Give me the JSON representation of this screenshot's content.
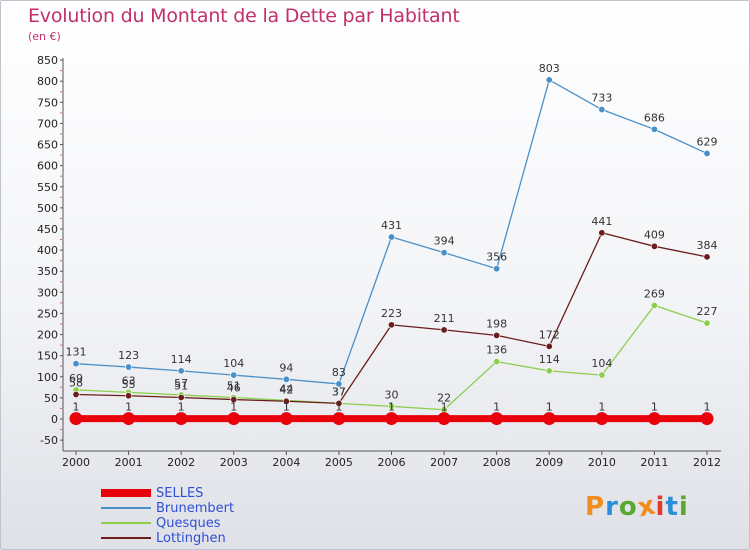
{
  "title": "Evolution du Montant de la Dette par Habitant",
  "subtitle": "(en €)",
  "logo": {
    "text": "Proxiti",
    "colors": [
      "#f28c1c",
      "#2a8fd6",
      "#5aa832",
      "#f28c1c",
      "#e23a2a",
      "#2a8fd6",
      "#5aa832"
    ]
  },
  "chart_data": {
    "type": "line",
    "x": [
      "2000",
      "2001",
      "2002",
      "2003",
      "2004",
      "2005",
      "2006",
      "2007",
      "2008",
      "2009",
      "2010",
      "2011",
      "2012"
    ],
    "ylim": [
      -50,
      850
    ],
    "yticks": [
      -50,
      0,
      50,
      100,
      150,
      200,
      250,
      300,
      350,
      400,
      450,
      500,
      550,
      600,
      650,
      700,
      750,
      800,
      850
    ],
    "grid": false,
    "legend": "bottom-left",
    "series": [
      {
        "name": "SELLES",
        "color": "#e8000b",
        "values": [
          1,
          1,
          1,
          1,
          1,
          1,
          1,
          1,
          1,
          1,
          1,
          1,
          1
        ]
      },
      {
        "name": "Brunembert",
        "color": "#4a90c8",
        "values": [
          131,
          123,
          114,
          104,
          94,
          83,
          431,
          394,
          356,
          803,
          733,
          686,
          629
        ]
      },
      {
        "name": "Quesques",
        "color": "#8ccf4e",
        "values": [
          69,
          63,
          57,
          51,
          44,
          37,
          30,
          22,
          136,
          114,
          104,
          269,
          227
        ]
      },
      {
        "name": "Lottinghen",
        "color": "#6b1c1c",
        "values": [
          58,
          55,
          51,
          46,
          42,
          37,
          223,
          211,
          198,
          172,
          441,
          409,
          384
        ]
      }
    ]
  }
}
